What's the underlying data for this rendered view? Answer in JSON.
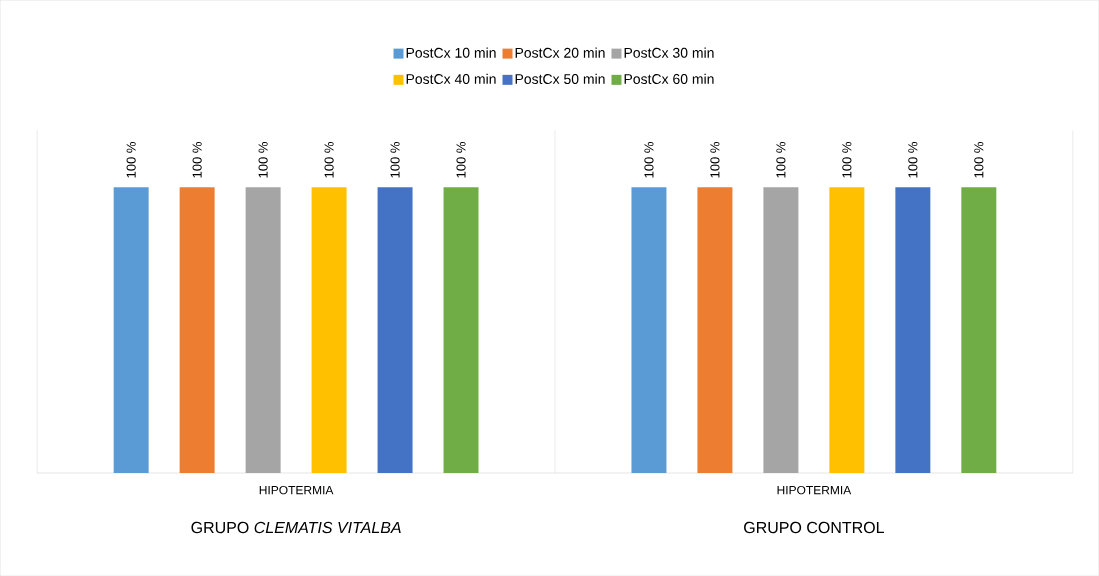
{
  "chart_data": {
    "type": "bar",
    "categories": [
      "HIPOTERMIA",
      "HIPOTERMIA"
    ],
    "series": [
      {
        "name": "PostCx 10 min",
        "color": "#5b9bd5",
        "values": [
          100,
          100
        ],
        "value_labels": [
          "100 %",
          "100 %"
        ]
      },
      {
        "name": "PostCx 20 min",
        "color": "#ed7d31",
        "values": [
          100,
          100
        ],
        "value_labels": [
          "100 %",
          "100 %"
        ]
      },
      {
        "name": "PostCx 30 min",
        "color": "#a5a5a5",
        "values": [
          100,
          100
        ],
        "value_labels": [
          "100 %",
          "100 %"
        ]
      },
      {
        "name": "PostCx 40 min",
        "color": "#ffc000",
        "values": [
          100,
          100
        ],
        "value_labels": [
          "100 %",
          "100 %"
        ]
      },
      {
        "name": "PostCx 50 min",
        "color": "#4472c4",
        "values": [
          100,
          100
        ],
        "value_labels": [
          "100 %",
          "100 %"
        ]
      },
      {
        "name": "PostCx 60 min",
        "color": "#70ad47",
        "values": [
          100,
          100
        ],
        "value_labels": [
          "100 %",
          "100 %"
        ]
      }
    ],
    "ylim": [
      0,
      120
    ],
    "legend": "top",
    "annotations": [
      "GRUPO *CLEMATIS VITALBA*",
      "GRUPO CONTROL"
    ]
  }
}
